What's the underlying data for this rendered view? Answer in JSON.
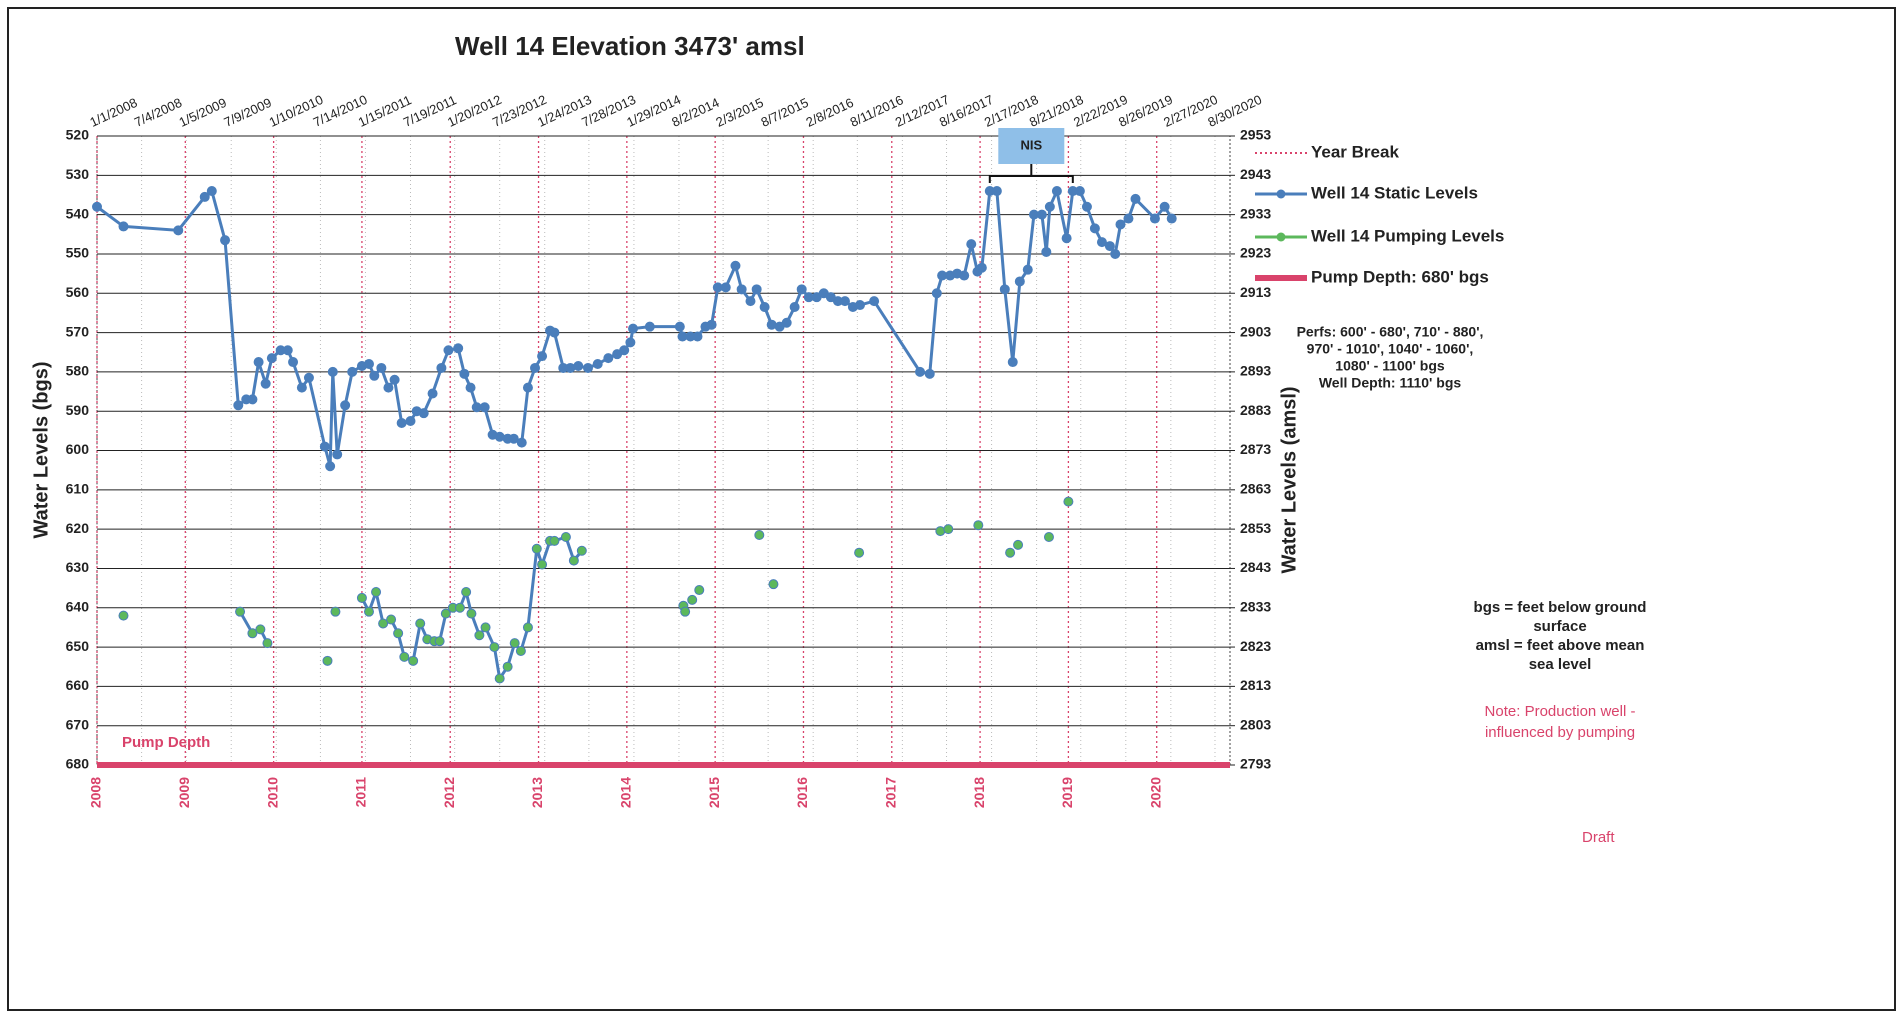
{
  "chart_data": {
    "type": "line",
    "title": "Well 14 Elevation 3473' amsl",
    "y_label": "Water Levels (bgs)",
    "y2_label": "Water Levels (amsl)",
    "xlim": [
      2008,
      2020.83
    ],
    "xticks": [
      2008,
      2009,
      2010,
      2011,
      2012,
      2013,
      2014,
      2015,
      2016,
      2017,
      2018,
      2019,
      2020
    ],
    "top_xticks": [
      {
        "value": 2008.0,
        "label": "1/1/2008"
      },
      {
        "value": 2008.505,
        "label": "7/4/2008"
      },
      {
        "value": 2009.01,
        "label": "1/5/2009"
      },
      {
        "value": 2009.52,
        "label": "7/9/2009"
      },
      {
        "value": 2010.03,
        "label": "1/10/2010"
      },
      {
        "value": 2010.53,
        "label": "7/14/2010"
      },
      {
        "value": 2011.04,
        "label": "1/15/2011"
      },
      {
        "value": 2011.55,
        "label": "7/19/2011"
      },
      {
        "value": 2012.05,
        "label": "1/20/2012"
      },
      {
        "value": 2012.56,
        "label": "7/23/2012"
      },
      {
        "value": 2013.07,
        "label": "1/24/2013"
      },
      {
        "value": 2013.57,
        "label": "7/28/2013"
      },
      {
        "value": 2014.08,
        "label": "1/29/2014"
      },
      {
        "value": 2014.59,
        "label": "8/2/2014"
      },
      {
        "value": 2015.09,
        "label": "2/3/2015"
      },
      {
        "value": 2015.6,
        "label": "8/7/2015"
      },
      {
        "value": 2016.11,
        "label": "2/8/2016"
      },
      {
        "value": 2016.61,
        "label": "8/11/2016"
      },
      {
        "value": 2017.12,
        "label": "2/12/2017"
      },
      {
        "value": 2017.62,
        "label": "8/16/2017"
      },
      {
        "value": 2018.13,
        "label": "2/17/2018"
      },
      {
        "value": 2018.64,
        "label": "8/21/2018"
      },
      {
        "value": 2019.14,
        "label": "2/22/2019"
      },
      {
        "value": 2019.65,
        "label": "8/26/2019"
      },
      {
        "value": 2020.16,
        "label": "2/27/2020"
      },
      {
        "value": 2020.66,
        "label": "8/30/2020"
      }
    ],
    "ylim": [
      520,
      680
    ],
    "y_inverted": true,
    "yticks": [
      520,
      530,
      540,
      550,
      560,
      570,
      580,
      590,
      600,
      610,
      620,
      630,
      640,
      650,
      660,
      670,
      680
    ],
    "y2lim": [
      2953,
      2793
    ],
    "y2ticks": [
      2953,
      2943,
      2933,
      2923,
      2913,
      2903,
      2893,
      2883,
      2873,
      2863,
      2853,
      2843,
      2833,
      2823,
      2813,
      2803,
      2793
    ],
    "grid": true,
    "year_break": {
      "name": "Year Break",
      "color": "#d9436b"
    },
    "series": [
      {
        "name": "Well 14 Static Levels",
        "color": "#4a7ebb",
        "line_color": "#4a7ebb",
        "x": [
          2008.0,
          2008.3,
          2008.92,
          2009.22,
          2009.3,
          2009.45,
          2009.6,
          2009.69,
          2009.76,
          2009.83,
          2009.91,
          2009.98,
          2010.08,
          2010.16,
          2010.22,
          2010.32,
          2010.4,
          2010.58,
          2010.64,
          2010.67,
          2010.72,
          2010.81,
          2010.89,
          2011.0,
          2011.08,
          2011.14,
          2011.22,
          2011.3,
          2011.37,
          2011.45,
          2011.55,
          2011.62,
          2011.7,
          2011.8,
          2011.9,
          2011.98,
          2012.09,
          2012.16,
          2012.23,
          2012.3,
          2012.39,
          2012.48,
          2012.56,
          2012.65,
          2012.72,
          2012.81,
          2012.88,
          2012.96,
          2013.04,
          2013.13,
          2013.18,
          2013.28,
          2013.36,
          2013.45,
          2013.56,
          2013.67,
          2013.79,
          2013.89,
          2013.97,
          2014.04,
          2014.07,
          2014.26,
          2014.6,
          2014.63,
          2014.72,
          2014.8,
          2014.89,
          2014.96,
          2015.03,
          2015.12,
          2015.23,
          2015.3,
          2015.4,
          2015.47,
          2015.56,
          2015.64,
          2015.73,
          2015.81,
          2015.9,
          2015.98,
          2016.06,
          2016.15,
          2016.23,
          2016.31,
          2016.39,
          2016.47,
          2016.56,
          2016.64,
          2016.8,
          2017.32,
          2017.43,
          2017.51,
          2017.57,
          2017.66,
          2017.74,
          2017.82,
          2017.9,
          2017.97,
          2018.02,
          2018.11,
          2018.19,
          2018.28,
          2018.37,
          2018.45,
          2018.54,
          2018.61,
          2018.7,
          2018.75,
          2018.79,
          2018.87,
          2018.98,
          2019.05,
          2019.13,
          2019.21,
          2019.3,
          2019.38,
          2019.47,
          2019.53,
          2019.59,
          2019.68,
          2019.76,
          2019.98,
          2020.09,
          2020.17
        ],
        "values": [
          538,
          543,
          544,
          535.5,
          534,
          546.5,
          588.5,
          587,
          587,
          577.5,
          583,
          576.5,
          574.5,
          574.5,
          577.5,
          584,
          581.5,
          599,
          604,
          580,
          601,
          588.5,
          580,
          578.5,
          578,
          581,
          579,
          584,
          582,
          593,
          592.5,
          590,
          590.5,
          585.5,
          579,
          574.5,
          574,
          580.5,
          584,
          589,
          589,
          596,
          596.5,
          597,
          597,
          598,
          584,
          579,
          576,
          569.5,
          570,
          579,
          579,
          578.5,
          579,
          578,
          576.5,
          575.5,
          574.5,
          572.5,
          569,
          568.5,
          568.5,
          571,
          571,
          571,
          568.5,
          568,
          558.5,
          558.5,
          553,
          559,
          562,
          559,
          563.5,
          568,
          568.5,
          567.5,
          563.5,
          559,
          561,
          561,
          560,
          561,
          562,
          562,
          563.5,
          563,
          562,
          580,
          580.5,
          560,
          555.5,
          555.5,
          555,
          555.5,
          547.5,
          554.5,
          553.5,
          534,
          534,
          559,
          577.5,
          557,
          554,
          540,
          540,
          549.5,
          538,
          534,
          546,
          534,
          534,
          538,
          543.5,
          547,
          548,
          550,
          542.5,
          541,
          536,
          541,
          538,
          541
        ]
      },
      {
        "name": "Well 14 Pumping Levels",
        "color": "#5cb85c",
        "line_color": "#4a7ebb",
        "x": [
          2008.3,
          null,
          2009.62,
          2009.76,
          2009.85,
          2009.93,
          null,
          2010.61,
          null,
          2010.7,
          null,
          2011.0,
          2011.08,
          2011.16,
          2011.24,
          2011.33,
          2011.41,
          2011.48,
          2011.58,
          2011.66,
          2011.74,
          2011.82,
          2011.88,
          2011.95,
          2012.03,
          2012.11,
          2012.18,
          2012.24,
          2012.33,
          2012.4,
          2012.5,
          2012.56,
          2012.65,
          2012.73,
          2012.8,
          2012.88,
          2012.98,
          2013.04,
          2013.13,
          2013.18,
          2013.31,
          2013.4,
          2013.49,
          null,
          2014.64,
          null,
          2014.66,
          null,
          2014.74,
          null,
          2014.82,
          null,
          2015.5,
          null,
          2015.66,
          null,
          2016.63,
          null,
          2017.55,
          null,
          2017.64,
          null,
          2017.98,
          null,
          2018.34,
          null,
          2018.43,
          null,
          2018.78,
          null,
          2019.0
        ],
        "values": [
          642,
          null,
          641,
          646.5,
          645.5,
          649,
          null,
          653.5,
          null,
          641,
          null,
          637.5,
          641,
          636,
          644,
          643,
          646.5,
          652.5,
          653.5,
          644,
          648,
          648.5,
          648.5,
          641.5,
          640,
          640,
          636,
          641.5,
          647,
          645,
          650,
          658,
          655,
          649,
          651,
          645,
          625,
          629,
          623,
          623,
          622,
          628,
          625.5,
          null,
          639.5,
          null,
          641,
          null,
          638,
          null,
          635.5,
          null,
          621.5,
          null,
          634,
          null,
          626,
          null,
          620.5,
          null,
          620,
          null,
          619,
          null,
          626,
          null,
          624,
          null,
          622,
          null,
          613
        ]
      }
    ],
    "pump_depth": {
      "name": "Pump Depth: 680' bgs",
      "value": 680,
      "color": "#d9436b",
      "label": "Pump Depth"
    },
    "nis": {
      "label": "NIS",
      "x_start": 2018.11,
      "x_end": 2019.05
    },
    "well_notes": [
      "Perfs: 600' - 680', 710' - 880',",
      "970' - 1010', 1040' - 1060',",
      "1080' - 1100' bgs",
      "Well Depth: 1110' bgs"
    ],
    "definitions": [
      "bgs = feet below ground",
      "surface",
      "amsl = feet above mean",
      "sea level"
    ],
    "production_note": [
      "Note: Production well -",
      "influenced by pumping"
    ],
    "draft": "Draft"
  }
}
